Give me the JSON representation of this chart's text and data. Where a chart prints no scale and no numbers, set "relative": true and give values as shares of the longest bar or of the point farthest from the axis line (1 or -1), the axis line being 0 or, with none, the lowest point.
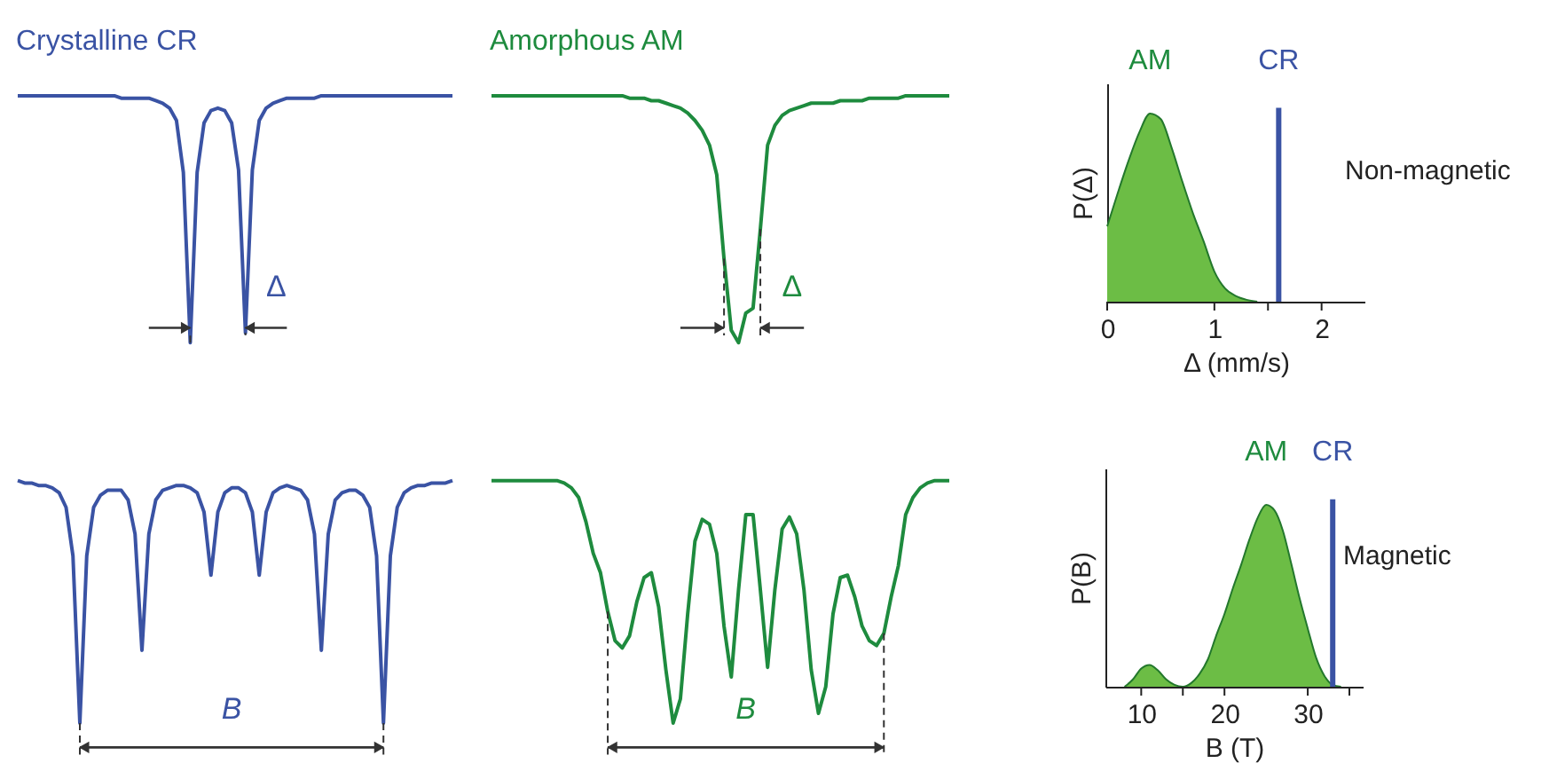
{
  "chart_data": [
    {
      "type": "line",
      "title": "Crystalline CR",
      "relative": true,
      "tick_labels": false,
      "color": "#3a53a4",
      "annotations": [
        "Δ"
      ],
      "categories": [
        null,
        null,
        null,
        null,
        null,
        null,
        null,
        null,
        null,
        null,
        null,
        null,
        null,
        null,
        null,
        null,
        null,
        null,
        null,
        null,
        null,
        null,
        null,
        null,
        null,
        null,
        null,
        null,
        null,
        null,
        null,
        null,
        null,
        null,
        null,
        null,
        null,
        null,
        null,
        null,
        null,
        null,
        null,
        null,
        null,
        null,
        null,
        null,
        null,
        null,
        null,
        null,
        null,
        null,
        null,
        null,
        null,
        null,
        null,
        null,
        null,
        null,
        null,
        null
      ],
      "values": [
        1,
        1,
        1,
        1,
        1,
        1,
        1,
        1,
        1,
        1,
        1,
        1,
        1,
        1,
        1,
        0.99,
        0.99,
        0.99,
        0.99,
        0.99,
        0.98,
        0.97,
        0.95,
        0.9,
        0.69,
        0,
        0.69,
        0.89,
        0.94,
        0.95,
        0.94,
        0.89,
        0.7,
        0.04,
        0.7,
        0.9,
        0.95,
        0.97,
        0.98,
        0.99,
        0.99,
        0.99,
        0.99,
        0.99,
        1,
        1,
        1,
        1,
        1,
        1,
        1,
        1,
        1,
        1,
        1,
        1,
        1,
        1,
        1,
        1,
        1,
        1,
        1,
        1
      ]
    },
    {
      "type": "line",
      "title": "Amorphous AM",
      "relative": true,
      "tick_labels": false,
      "color": "#1e8b3e",
      "annotations": [
        "Δ"
      ],
      "categories": [
        null,
        null,
        null,
        null,
        null,
        null,
        null,
        null,
        null,
        null,
        null,
        null,
        null,
        null,
        null,
        null,
        null,
        null,
        null,
        null,
        null,
        null,
        null,
        null,
        null,
        null,
        null,
        null,
        null,
        null,
        null,
        null,
        null,
        null,
        null,
        null,
        null,
        null,
        null,
        null,
        null,
        null,
        null,
        null,
        null,
        null,
        null,
        null,
        null,
        null,
        null,
        null,
        null,
        null,
        null,
        null,
        null,
        null,
        null,
        null,
        null,
        null,
        null,
        null
      ],
      "values": [
        1,
        1,
        1,
        1,
        1,
        1,
        1,
        1,
        1,
        1,
        1,
        1,
        1,
        1,
        1,
        1,
        1,
        1,
        1,
        0.99,
        0.99,
        0.99,
        0.98,
        0.98,
        0.97,
        0.96,
        0.95,
        0.93,
        0.9,
        0.86,
        0.8,
        0.68,
        0.34,
        0.05,
        0,
        0.12,
        0.14,
        0.46,
        0.8,
        0.88,
        0.92,
        0.94,
        0.95,
        0.96,
        0.97,
        0.97,
        0.97,
        0.97,
        0.98,
        0.98,
        0.98,
        0.98,
        0.99,
        0.99,
        0.99,
        0.99,
        0.99,
        1,
        1,
        1,
        1,
        1,
        1,
        1
      ]
    },
    {
      "type": "area",
      "relative": true,
      "tick_labels": "x",
      "xlabel": "Δ (mm/s)",
      "ylabel": "P(Δ)",
      "xlim": [
        0,
        2.4
      ],
      "xticks": [
        0,
        1,
        {
          "value": 1.5,
          "label": null
        },
        2
      ],
      "x": [
        0,
        0.1,
        0.2,
        0.3,
        0.4,
        0.5,
        0.6,
        0.7,
        0.8,
        0.9,
        1.0,
        1.1,
        1.2,
        1.3,
        1.4
      ],
      "series": [
        {
          "name": "AM",
          "color": "#6cbd45",
          "values": [
            0.4,
            0.58,
            0.75,
            0.9,
            1,
            0.97,
            0.82,
            0.64,
            0.47,
            0.32,
            0.16,
            0.07,
            0.03,
            0.01,
            0
          ]
        }
      ],
      "ref_lines": [
        {
          "axis": "x",
          "value": 1.6,
          "label": "CR",
          "color": "#3a53a4"
        }
      ],
      "annotations": [
        "Non-magnetic"
      ]
    },
    {
      "type": "line",
      "relative": true,
      "tick_labels": false,
      "color": "#3a53a4",
      "annotations": [
        "B"
      ],
      "categories": [
        null,
        null,
        null,
        null,
        null,
        null,
        null,
        null,
        null,
        null,
        null,
        null,
        null,
        null,
        null,
        null,
        null,
        null,
        null,
        null,
        null,
        null,
        null,
        null,
        null,
        null,
        null,
        null,
        null,
        null,
        null,
        null,
        null,
        null,
        null,
        null,
        null,
        null,
        null,
        null,
        null,
        null,
        null,
        null,
        null,
        null,
        null,
        null,
        null,
        null,
        null,
        null,
        null,
        null,
        null,
        null,
        null,
        null,
        null,
        null,
        null,
        null,
        null,
        null
      ],
      "values": [
        1,
        0.99,
        0.99,
        0.98,
        0.98,
        0.97,
        0.95,
        0.89,
        0.69,
        0,
        0.69,
        0.89,
        0.94,
        0.96,
        0.96,
        0.96,
        0.92,
        0.78,
        0.3,
        0.78,
        0.92,
        0.96,
        0.97,
        0.98,
        0.98,
        0.97,
        0.95,
        0.87,
        0.61,
        0.87,
        0.95,
        0.97,
        0.97,
        0.95,
        0.87,
        0.61,
        0.87,
        0.95,
        0.97,
        0.98,
        0.97,
        0.96,
        0.92,
        0.78,
        0.3,
        0.78,
        0.92,
        0.95,
        0.96,
        0.96,
        0.94,
        0.89,
        0.69,
        0,
        0.69,
        0.89,
        0.95,
        0.97,
        0.98,
        0.98,
        0.99,
        0.99,
        0.99,
        1
      ]
    },
    {
      "type": "line",
      "relative": true,
      "tick_labels": false,
      "color": "#1e8b3e",
      "annotations": [
        "B"
      ],
      "categories": [
        null,
        null,
        null,
        null,
        null,
        null,
        null,
        null,
        null,
        null,
        null,
        null,
        null,
        null,
        null,
        null,
        null,
        null,
        null,
        null,
        null,
        null,
        null,
        null,
        null,
        null,
        null,
        null,
        null,
        null,
        null,
        null,
        null,
        null,
        null,
        null,
        null,
        null,
        null,
        null,
        null,
        null,
        null,
        null,
        null,
        null,
        null,
        null,
        null,
        null,
        null,
        null,
        null,
        null,
        null,
        null,
        null,
        null,
        null,
        null,
        null,
        null,
        null,
        null
      ],
      "values": [
        1,
        1,
        1,
        1,
        1,
        1,
        1,
        1,
        1,
        1,
        0.99,
        0.97,
        0.93,
        0.83,
        0.7,
        0.62,
        0.46,
        0.34,
        0.31,
        0.36,
        0.5,
        0.6,
        0.62,
        0.48,
        0.22,
        0,
        0.1,
        0.45,
        0.75,
        0.84,
        0.82,
        0.7,
        0.4,
        0.19,
        0.55,
        0.86,
        0.86,
        0.55,
        0.23,
        0.55,
        0.8,
        0.85,
        0.78,
        0.55,
        0.22,
        0.04,
        0.15,
        0.45,
        0.6,
        0.61,
        0.52,
        0.4,
        0.34,
        0.32,
        0.37,
        0.52,
        0.65,
        0.86,
        0.93,
        0.97,
        0.99,
        1,
        1,
        1
      ]
    },
    {
      "type": "area",
      "relative": true,
      "tick_labels": "x",
      "xlabel": "B (T)",
      "ylabel": "P(B)",
      "xlim": [
        5.7,
        36.6
      ],
      "xticks": [
        10,
        {
          "value": 15,
          "label": null
        },
        20,
        30,
        {
          "value": 35,
          "label": null
        }
      ],
      "x": [
        8,
        9,
        10,
        11,
        12,
        13,
        14,
        15,
        16,
        17,
        18,
        19,
        20,
        21,
        22,
        23,
        24,
        25,
        26,
        27,
        28,
        29,
        30,
        31,
        32,
        33,
        34
      ],
      "series": [
        {
          "name": "AM",
          "color": "#6cbd45",
          "values": [
            0,
            0.04,
            0.1,
            0.12,
            0.09,
            0.04,
            0.01,
            0,
            0.02,
            0.07,
            0.15,
            0.28,
            0.4,
            0.54,
            0.67,
            0.81,
            0.93,
            1,
            0.97,
            0.86,
            0.68,
            0.49,
            0.32,
            0.16,
            0.06,
            0.01,
            0
          ]
        }
      ],
      "ref_lines": [
        {
          "axis": "x",
          "value": 33,
          "label": "CR",
          "color": "#3a53a4"
        }
      ],
      "annotations": [
        "Magnetic"
      ]
    }
  ]
}
